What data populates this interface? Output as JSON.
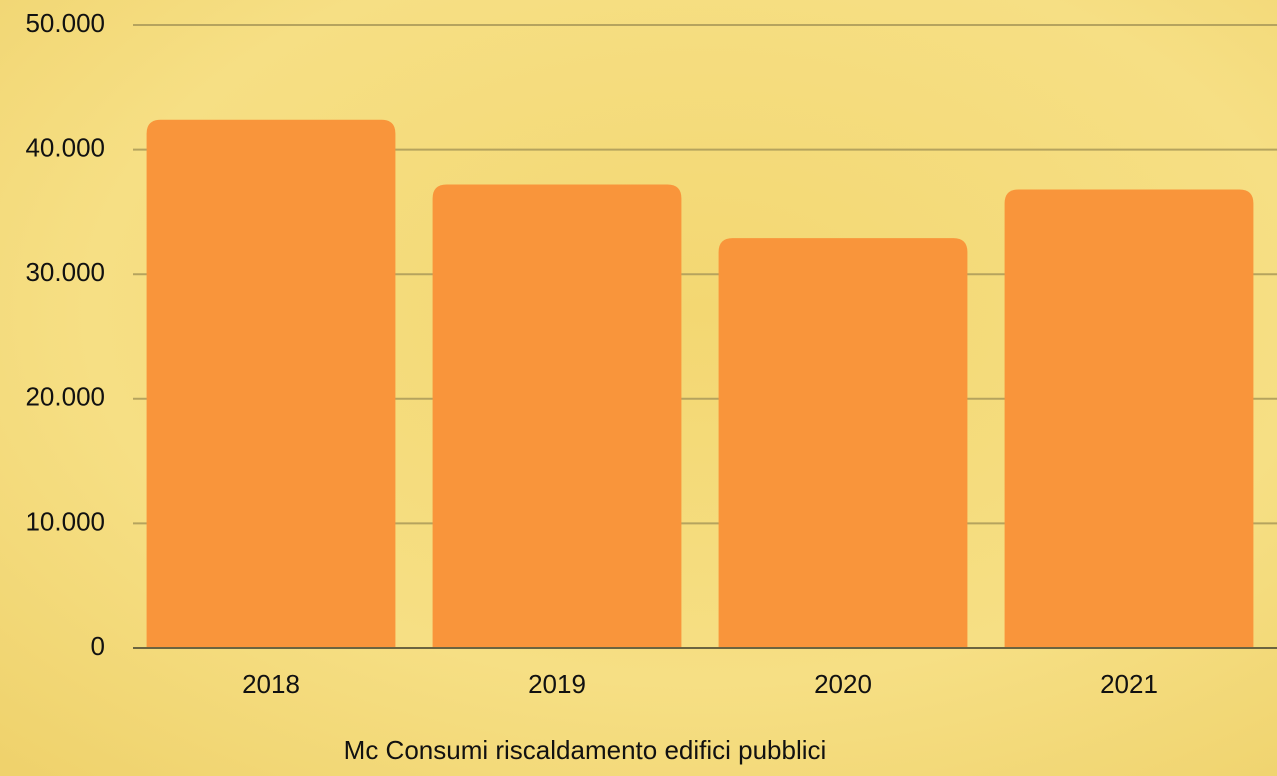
{
  "chart_data": {
    "type": "bar",
    "x_label": "Mc Consumi riscaldamento edifici pubblici",
    "categories": [
      "2018",
      "2019",
      "2020",
      "2021"
    ],
    "values": [
      42400,
      37200,
      32900,
      36800
    ],
    "color": "#f9953b",
    "ylim": [
      0,
      50000
    ],
    "yticks": [
      0,
      {
        "value": 10000,
        "label": "10.000"
      },
      {
        "value": 20000,
        "label": "20.000"
      },
      {
        "value": 30000,
        "label": "30.000"
      },
      {
        "value": 40000,
        "label": "40.000"
      },
      {
        "value": 50000,
        "label": "50.000"
      }
    ],
    "grid": true
  }
}
